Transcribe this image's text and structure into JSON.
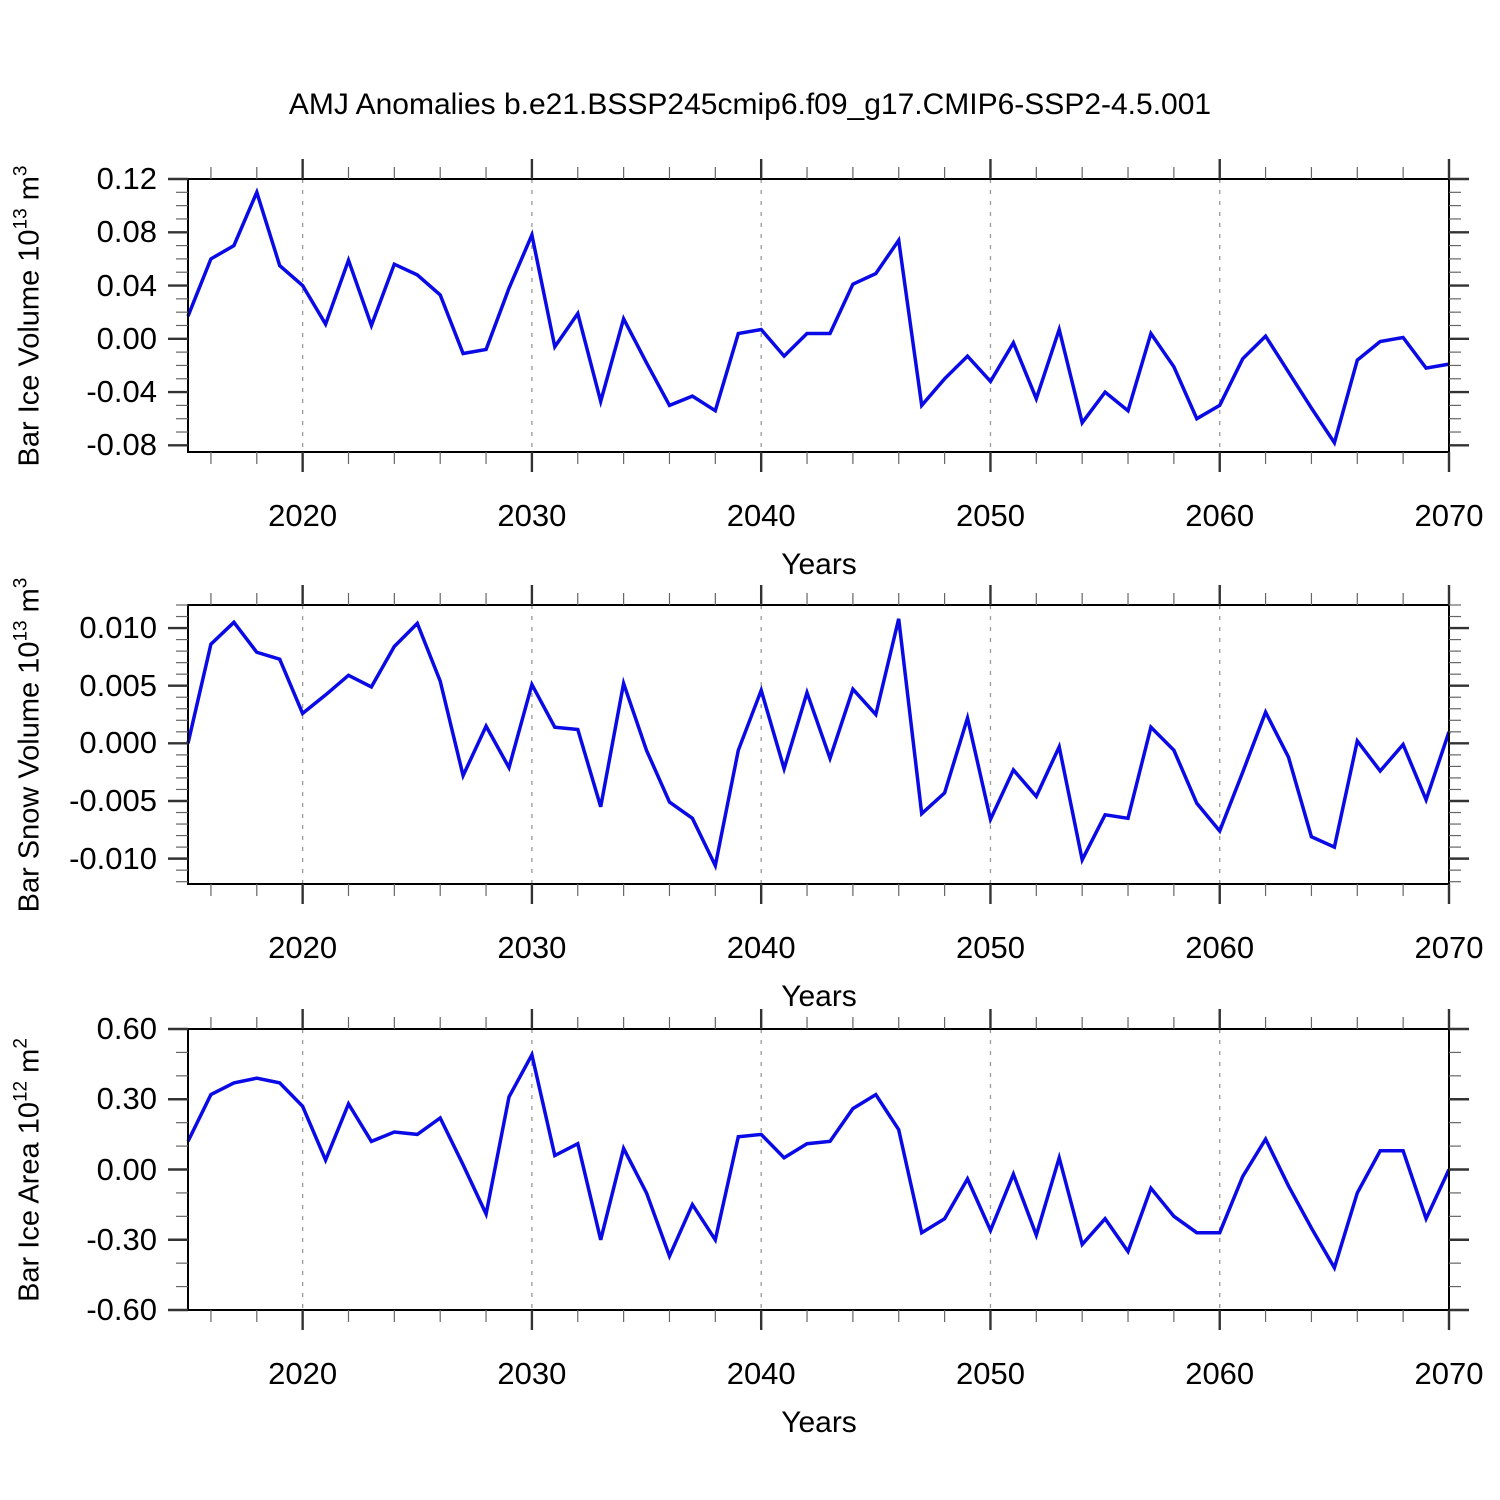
{
  "title": "AMJ Anomalies b.e21.BSSP245cmip6.f09_g17.CMIP6-SSP2-4.5.001",
  "style": {
    "line_color": "#0a0ae6",
    "grid_color": "#999999",
    "frame_color": "#000000",
    "major_tick_color": "#333333",
    "minor_tick_color": "#666666",
    "text_color": "#000000"
  },
  "chart_data": [
    {
      "type": "line",
      "name": "ice-volume",
      "ylabel_segments": [
        {
          "t": "Bar Ice Volume 10"
        },
        {
          "t": "13",
          "sup": true
        },
        {
          "t": " m"
        },
        {
          "t": "3",
          "sup": true
        }
      ],
      "xlabel": "Years",
      "x_start": 2015,
      "x_end": 2070,
      "x_step": 1,
      "ylim": [
        -0.085,
        0.12
      ],
      "yticks": [
        {
          "v": 0.12,
          "label": "0.12"
        },
        {
          "v": 0.08,
          "label": "0.08"
        },
        {
          "v": 0.04,
          "label": "0.04"
        },
        {
          "v": 0.0,
          "label": "0.00"
        },
        {
          "v": -0.04,
          "label": "-0.04"
        },
        {
          "v": -0.08,
          "label": "-0.08"
        }
      ],
      "y_minor_step": 0.01,
      "xticks": [
        {
          "v": 2020,
          "label": "2020"
        },
        {
          "v": 2030,
          "label": "2030"
        },
        {
          "v": 2040,
          "label": "2040"
        },
        {
          "v": 2050,
          "label": "2050"
        },
        {
          "v": 2060,
          "label": "2060"
        },
        {
          "v": 2070,
          "label": "2070"
        }
      ],
      "x_minor_step": 2,
      "grid_x": [
        2020,
        2030,
        2040,
        2050,
        2060
      ],
      "values": [
        0.017,
        0.06,
        0.07,
        0.11,
        0.055,
        0.04,
        0.011,
        0.059,
        0.01,
        0.056,
        0.048,
        0.033,
        -0.011,
        -0.008,
        0.038,
        0.078,
        -0.006,
        0.019,
        -0.047,
        0.015,
        -0.018,
        -0.05,
        -0.043,
        -0.054,
        0.004,
        0.007,
        -0.013,
        0.004,
        0.004,
        0.041,
        0.049,
        0.074,
        -0.05,
        -0.03,
        -0.013,
        -0.032,
        -0.003,
        -0.045,
        0.007,
        -0.063,
        -0.04,
        -0.054,
        0.004,
        -0.021,
        -0.06,
        -0.05,
        -0.015,
        0.002,
        -0.025,
        -0.052,
        -0.078,
        -0.016,
        -0.002,
        0.001,
        -0.022,
        -0.019
      ]
    },
    {
      "type": "line",
      "name": "snow-volume",
      "ylabel_segments": [
        {
          "t": "Bar Snow Volume 10"
        },
        {
          "t": "13",
          "sup": true
        },
        {
          "t": " m"
        },
        {
          "t": "3",
          "sup": true
        }
      ],
      "xlabel": "Years",
      "x_start": 2015,
      "x_end": 2070,
      "x_step": 1,
      "ylim": [
        -0.0122,
        0.012
      ],
      "yticks": [
        {
          "v": 0.01,
          "label": "0.010"
        },
        {
          "v": 0.005,
          "label": "0.005"
        },
        {
          "v": 0.0,
          "label": "0.000"
        },
        {
          "v": -0.005,
          "label": "-0.005"
        },
        {
          "v": -0.01,
          "label": "-0.010"
        }
      ],
      "y_minor_step": 0.001,
      "xticks": [
        {
          "v": 2020,
          "label": "2020"
        },
        {
          "v": 2030,
          "label": "2030"
        },
        {
          "v": 2040,
          "label": "2040"
        },
        {
          "v": 2050,
          "label": "2050"
        },
        {
          "v": 2060,
          "label": "2060"
        },
        {
          "v": 2070,
          "label": "2070"
        }
      ],
      "x_minor_step": 2,
      "grid_x": [
        2020,
        2030,
        2040,
        2050,
        2060
      ],
      "values": [
        0.0,
        0.0086,
        0.0105,
        0.0079,
        0.0073,
        0.0026,
        0.0042,
        0.0059,
        0.0049,
        0.0084,
        0.0104,
        0.0054,
        -0.0028,
        0.0015,
        -0.0021,
        0.0051,
        0.0014,
        0.0012,
        -0.0055,
        0.0052,
        -0.0006,
        -0.0051,
        -0.0065,
        -0.0106,
        -0.0006,
        0.0046,
        -0.0022,
        0.0044,
        -0.0013,
        0.0047,
        0.0025,
        0.0108,
        -0.0061,
        -0.0043,
        0.0022,
        -0.0066,
        -0.0023,
        -0.0046,
        -0.0003,
        -0.0101,
        -0.0062,
        -0.0065,
        0.0014,
        -0.0006,
        -0.0052,
        -0.0076,
        -0.0025,
        0.0027,
        -0.0012,
        -0.0081,
        -0.009,
        0.0002,
        -0.0024,
        -0.0001,
        -0.0049,
        0.001
      ]
    },
    {
      "type": "line",
      "name": "ice-area",
      "ylabel_segments": [
        {
          "t": "Bar Ice Area 10"
        },
        {
          "t": "12",
          "sup": true
        },
        {
          "t": " m"
        },
        {
          "t": "2",
          "sup": true
        }
      ],
      "xlabel": "Years",
      "x_start": 2015,
      "x_end": 2070,
      "x_step": 1,
      "ylim": [
        -0.6,
        0.6
      ],
      "yticks": [
        {
          "v": 0.6,
          "label": "0.60"
        },
        {
          "v": 0.3,
          "label": "0.30"
        },
        {
          "v": 0.0,
          "label": "0.00"
        },
        {
          "v": -0.3,
          "label": "-0.30"
        },
        {
          "v": -0.6,
          "label": "-0.60"
        }
      ],
      "y_minor_step": 0.1,
      "xticks": [
        {
          "v": 2020,
          "label": "2020"
        },
        {
          "v": 2030,
          "label": "2030"
        },
        {
          "v": 2040,
          "label": "2040"
        },
        {
          "v": 2050,
          "label": "2050"
        },
        {
          "v": 2060,
          "label": "2060"
        },
        {
          "v": 2070,
          "label": "2070"
        }
      ],
      "x_minor_step": 2,
      "grid_x": [
        2020,
        2030,
        2040,
        2050,
        2060
      ],
      "values": [
        0.12,
        0.32,
        0.37,
        0.39,
        0.37,
        0.27,
        0.04,
        0.28,
        0.12,
        0.16,
        0.15,
        0.22,
        0.02,
        -0.19,
        0.31,
        0.49,
        0.06,
        0.11,
        -0.3,
        0.09,
        -0.1,
        -0.37,
        -0.15,
        -0.3,
        0.14,
        0.15,
        0.05,
        0.11,
        0.12,
        0.26,
        0.32,
        0.17,
        -0.27,
        -0.21,
        -0.04,
        -0.26,
        -0.02,
        -0.28,
        0.05,
        -0.32,
        -0.21,
        -0.35,
        -0.08,
        -0.2,
        -0.27,
        -0.27,
        -0.03,
        0.13,
        -0.07,
        -0.25,
        -0.42,
        -0.1,
        0.08,
        0.08,
        -0.21,
        0.0
      ]
    }
  ]
}
